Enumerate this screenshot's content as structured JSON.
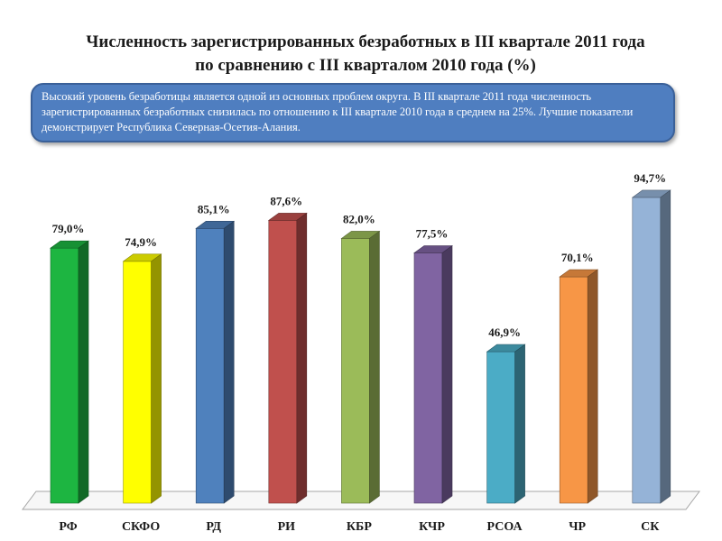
{
  "title": {
    "line1": "Численность зарегистрированных безработных в III квартале 2011 года",
    "line2": "по сравнению с III кварталом 2010 года (%)"
  },
  "callout": {
    "text": "Высокий уровень безработицы является одной из основных проблем округа.  В III квартале 2011 года численность зарегистрированных безработных снизилась по отношению к III квартале 2010 года в среднем на 25%.  Лучшие показатели демонстрирует Республика Северная-Осетия-Алания."
  },
  "chart_data": {
    "type": "bar",
    "title": "Численность зарегистрированных безработных в III квартале 2011 года по сравнению с III кварталом 2010 года (%)",
    "categories": [
      "РФ",
      "СКФО",
      "РД",
      "РИ",
      "КБР",
      "КЧР",
      "РСОА",
      "ЧР",
      "СК"
    ],
    "values": [
      79.0,
      74.9,
      85.1,
      87.6,
      82.0,
      77.5,
      46.9,
      70.1,
      94.7
    ],
    "value_labels": [
      "79,0%",
      "74,9%",
      "85,1%",
      "87,6%",
      "82,0%",
      "77,5%",
      "46,9%",
      "70,1%",
      "94,7%"
    ],
    "colors": [
      "#1db541",
      "#ffff00",
      "#4f81bd",
      "#c0504d",
      "#9bbb59",
      "#8064a2",
      "#4bacc6",
      "#f79646",
      "#95b3d7"
    ],
    "ylim": [
      0,
      100
    ],
    "grid": false,
    "three_d": true
  }
}
